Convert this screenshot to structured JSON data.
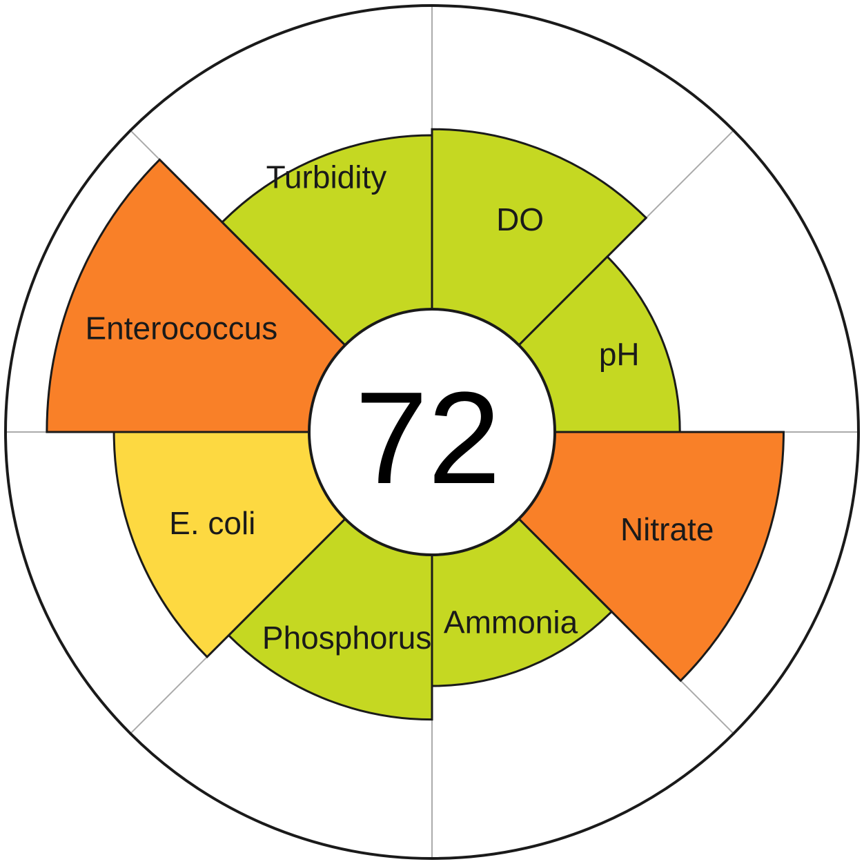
{
  "chart_data": {
    "type": "polar-area",
    "title": "",
    "score": "72",
    "max_value": 100,
    "categories": [
      {
        "label": "DO",
        "value": 59,
        "color": "#c5d822"
      },
      {
        "label": "pH",
        "value": 41,
        "color": "#c5d822"
      },
      {
        "label": "Nitrate",
        "value": 75,
        "color": "#f98028"
      },
      {
        "label": "Ammonia",
        "value": 43,
        "color": "#c5d822"
      },
      {
        "label": "Phosphorus",
        "value": 54,
        "color": "#c5d822"
      },
      {
        "label": "E. coli",
        "value": 64,
        "color": "#fdd941"
      },
      {
        "label": "Enterococcus",
        "value": 86,
        "color": "#f98028"
      },
      {
        "label": "Turbidity",
        "value": 57,
        "color": "#c5d822"
      }
    ]
  }
}
